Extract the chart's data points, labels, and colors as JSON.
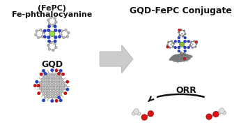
{
  "background_color": "#ffffff",
  "gqd_label": "GQD",
  "fepc_label_1": "Fe-phthalocyanine",
  "fepc_label_2": "(FePC)",
  "conjugate_label": "GQD-FePC Conjugate",
  "orr_label": "ORR",
  "arrow_color": "#111111",
  "gqd_carbon_color": "#bbbbbb",
  "gqd_bond_color": "#999999",
  "gqd_oh_color": "#cc1111",
  "gqd_n_color": "#2244cc",
  "fepc_carbon_color": "#bbbbbb",
  "fepc_bond_color": "#888888",
  "fepc_n_color": "#2244cc",
  "fepc_fe_color": "#99dd55",
  "o2_red_color": "#dd1111",
  "o2_white_color": "#dddddd",
  "conj_carbon_color": "#888888",
  "conj_bond_color": "#666666",
  "conj_n_color": "#2244cc",
  "conj_o_color": "#cc2222",
  "conj_fe_color": "#88bb44",
  "conj_pink_color": "#ee88aa",
  "big_arrow_fc": "#cccccc",
  "big_arrow_ec": "#aaaaaa",
  "font_size_label": 8,
  "font_size_orr": 9,
  "font_size_conj": 8,
  "font_size_fepc": 8
}
